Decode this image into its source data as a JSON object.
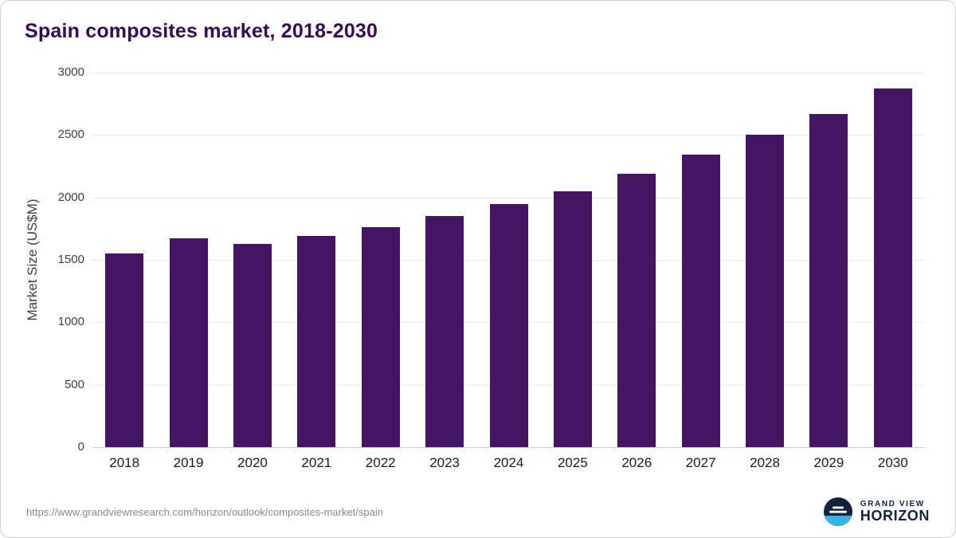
{
  "title": "Spain composites market, 2018-2030",
  "footer": {
    "source_url": "https://www.grandviewresearch.com/horizon/outlook/composites-market/spain",
    "brand_top": "GRAND VIEW",
    "brand_bottom": "HORIZON"
  },
  "colors": {
    "bar": "#451462",
    "grid": "#e7e7e7",
    "title": "#350a52",
    "axis_text": "#404040",
    "footer_text": "#8a8a8a",
    "brand": "#14213f",
    "logo_dark": "#14213f",
    "logo_blue": "#33b5e5"
  },
  "chart_data": {
    "type": "bar",
    "title": "Spain composites market, 2018-2030",
    "categories": [
      "2018",
      "2019",
      "2020",
      "2021",
      "2022",
      "2023",
      "2024",
      "2025",
      "2026",
      "2027",
      "2028",
      "2029",
      "2030"
    ],
    "values": [
      1550,
      1670,
      1630,
      1690,
      1760,
      1850,
      1950,
      2050,
      2190,
      2340,
      2500,
      2670,
      2870
    ],
    "xlabel": "",
    "ylabel": "Market Size (US$M)",
    "ylim": [
      0,
      3000
    ],
    "yticks": [
      0,
      500,
      1000,
      1500,
      2000,
      2500,
      3000
    ],
    "grid": true,
    "legend": false,
    "bar_color": "#451462"
  }
}
